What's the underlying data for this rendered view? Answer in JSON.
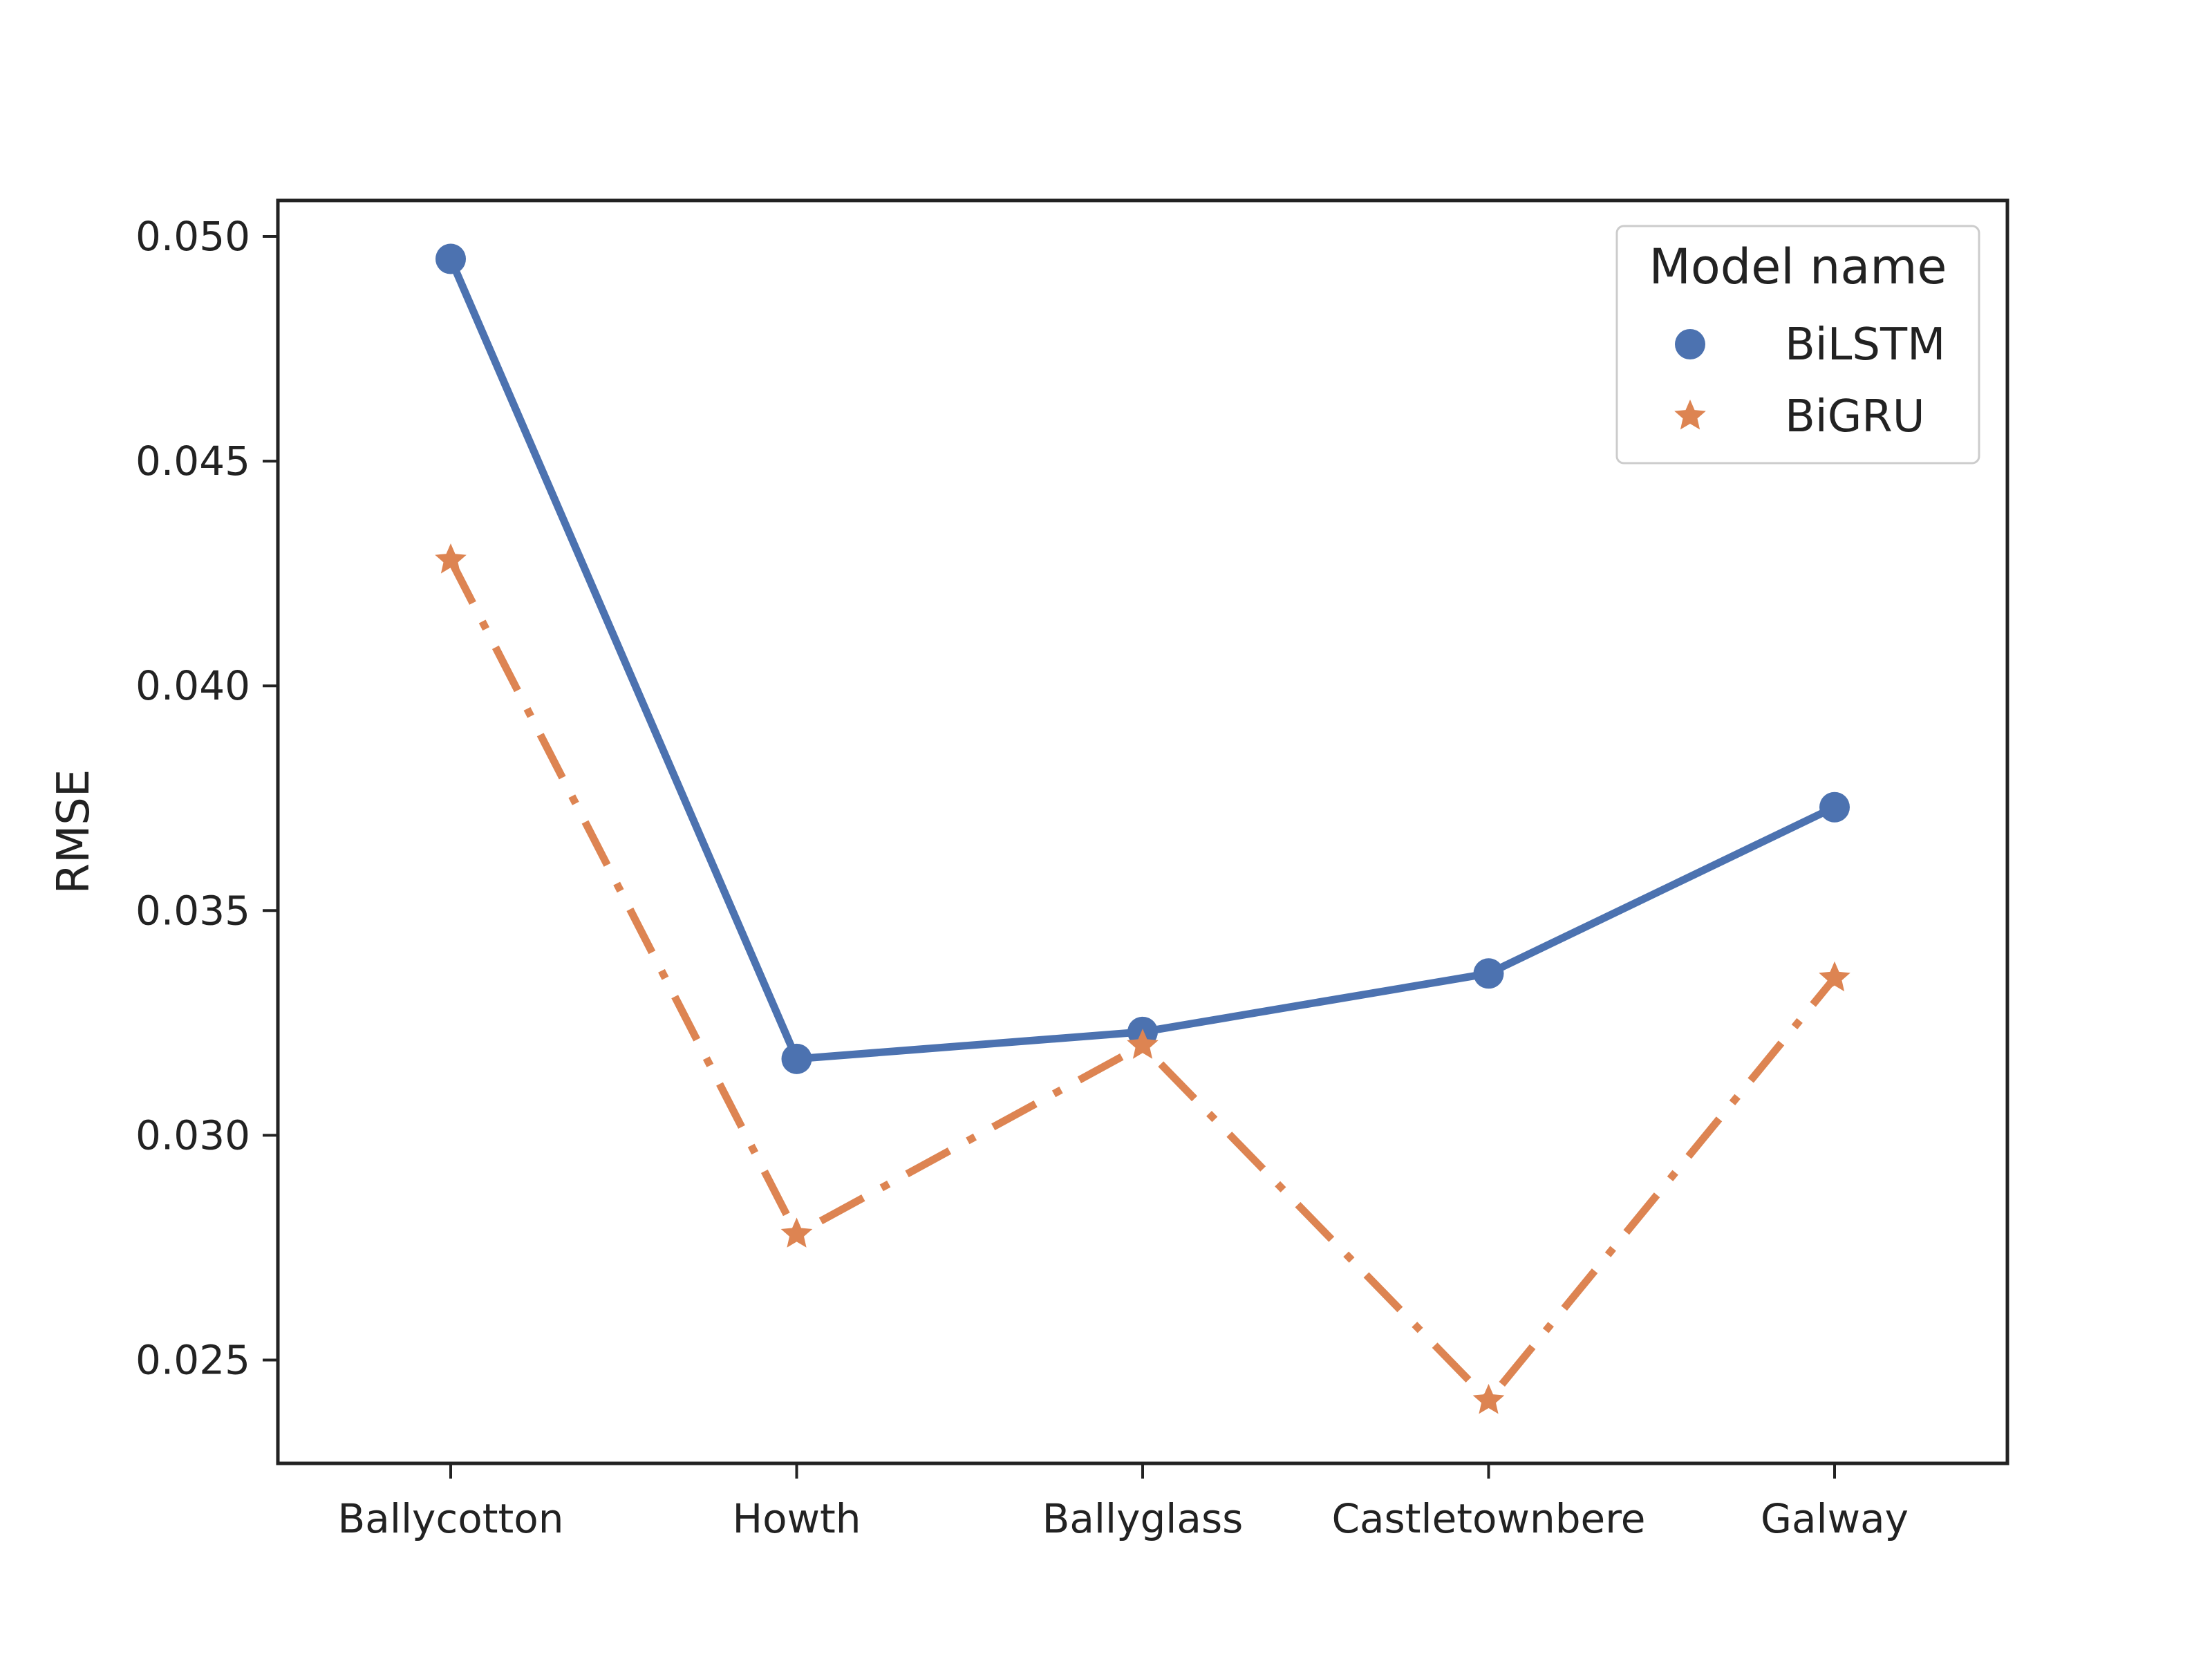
{
  "chart_data": {
    "type": "line",
    "categories": [
      "Ballycotton",
      "Howth",
      "Ballyglass",
      "Castletownbere",
      "Galway"
    ],
    "ylabel": "RMSE",
    "xlabel": "",
    "ylim": [
      0.0227,
      0.0508
    ],
    "yticks": [
      "0.025",
      "0.030",
      "0.035",
      "0.040",
      "0.045",
      "0.050"
    ],
    "grid": false,
    "legend": {
      "title": "Model name",
      "placement": "top-right"
    },
    "series": [
      {
        "name": "BiLSTM",
        "values": [
          0.0495,
          0.0317,
          0.0323,
          0.0336,
          0.0373
        ],
        "color": "#4C72B0",
        "marker": "circle",
        "line_style": "solid"
      },
      {
        "name": "BiGRU",
        "values": [
          0.0428,
          0.0278,
          0.032,
          0.0241,
          0.0335
        ],
        "color": "#DD8452",
        "marker": "star",
        "line_style": "dash-dot"
      }
    ]
  }
}
